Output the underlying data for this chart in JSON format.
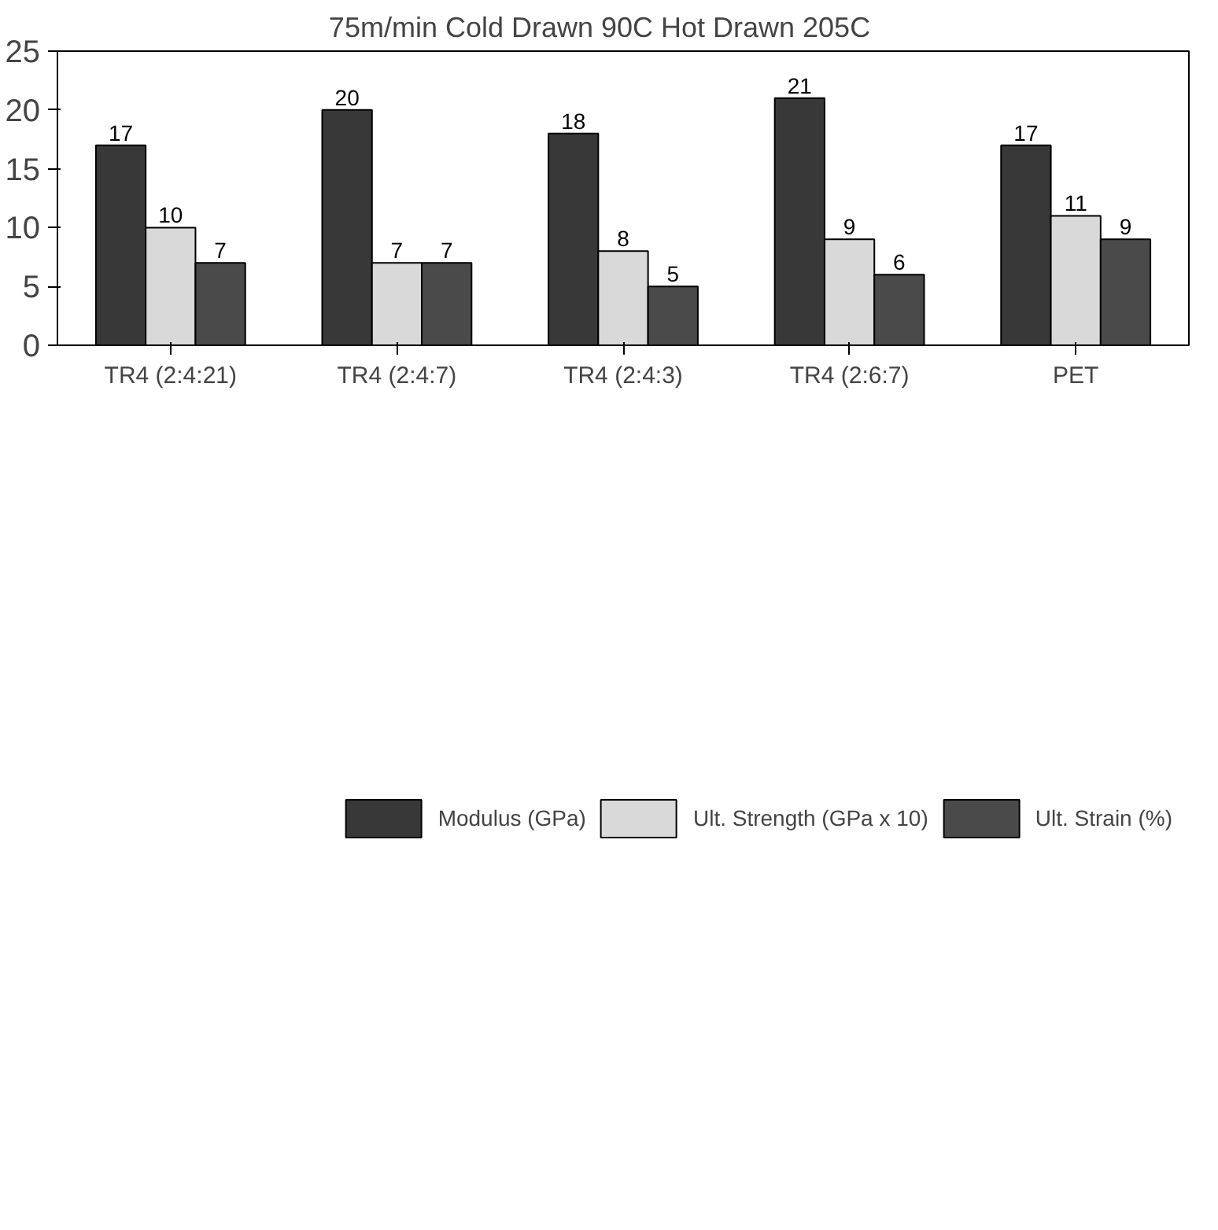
{
  "chart_data": {
    "type": "bar",
    "title": "75m/min    Cold Drawn 90C    Hot Drawn 205C",
    "categories": [
      "TR4 (2:4:21)",
      "TR4 (2:4:7)",
      "TR4 (2:4:3)",
      "TR4 (2:6:7)",
      "PET"
    ],
    "series": [
      {
        "name": "Modulus (GPa)",
        "color": "#383838",
        "values": [
          17,
          20,
          18,
          21,
          17
        ]
      },
      {
        "name": "Ult. Strength (GPa x 10)",
        "color": "#d9d9d9",
        "values": [
          10,
          7,
          8,
          9,
          11
        ]
      },
      {
        "name": "Ult. Strain (%)",
        "color": "#4a4a4a",
        "values": [
          7,
          7,
          5,
          6,
          9
        ]
      }
    ],
    "ylim": [
      0,
      25
    ],
    "yticks": [
      0,
      5,
      10,
      15,
      20,
      25
    ],
    "grid": false,
    "data_labels": true,
    "legend": "bottom"
  }
}
